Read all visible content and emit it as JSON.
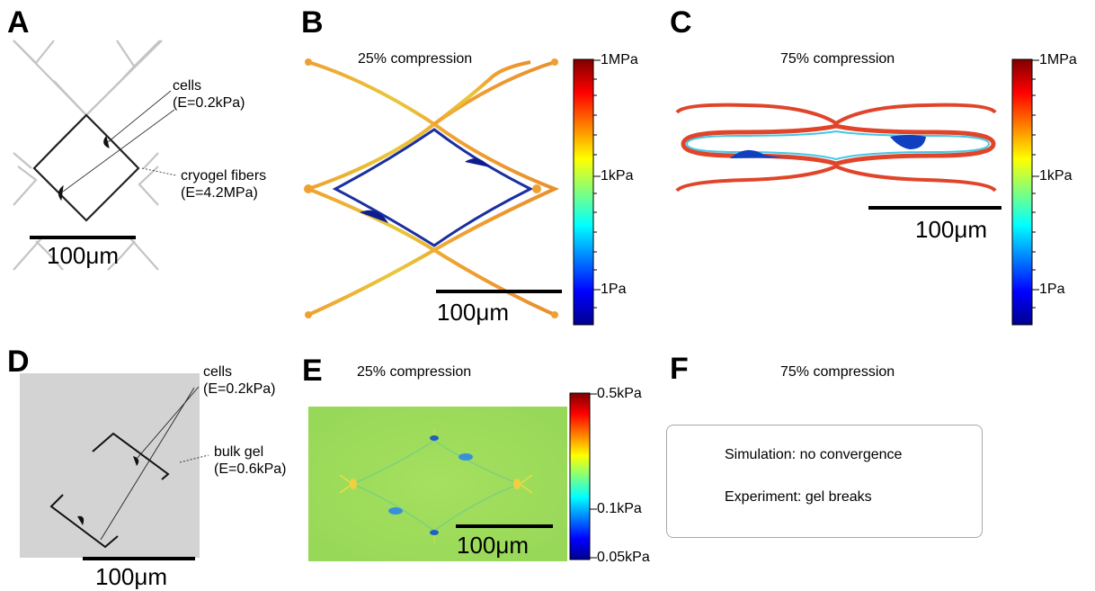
{
  "panels": {
    "A": {
      "letter": "A",
      "cells_label": "cells",
      "cells_modulus": "(E=0.2kPa)",
      "fibers_label": "cryogel fibers",
      "fibers_modulus": "(E=4.2MPa)",
      "scalebar": "100μm"
    },
    "B": {
      "letter": "B",
      "title": "25% compression",
      "scalebar": "100μm",
      "colorbar_ticks": [
        "1MPa",
        "1kPa",
        "1Pa"
      ]
    },
    "C": {
      "letter": "C",
      "title": "75% compression",
      "scalebar": "100μm",
      "colorbar_ticks": [
        "1MPa",
        "1kPa",
        "1Pa"
      ]
    },
    "D": {
      "letter": "D",
      "cells_label": "cells",
      "cells_modulus": "(E=0.2kPa)",
      "gel_label": "bulk gel",
      "gel_modulus": "(E=0.6kPa)",
      "scalebar": "100μm"
    },
    "E": {
      "letter": "E",
      "title": "25% compression",
      "scalebar": "100μm",
      "colorbar_ticks": [
        "0.5kPa",
        "0.1kPa",
        "0.05kPa"
      ]
    },
    "F": {
      "letter": "F",
      "title": "75% compression",
      "line1": "Simulation: no convergence",
      "line2": "Experiment: gel breaks"
    }
  },
  "colors": {
    "jet_high": "#800000",
    "jet_mid": "#ffff00",
    "jet_low": "#00008f",
    "fiber_orange": "#f0a030",
    "fiber_red": "#e0452a",
    "cell_blue": "#1a3fb0",
    "bulk_gel_gray": "#d3d3d3",
    "stress_field_green": "#9fdc5a"
  }
}
